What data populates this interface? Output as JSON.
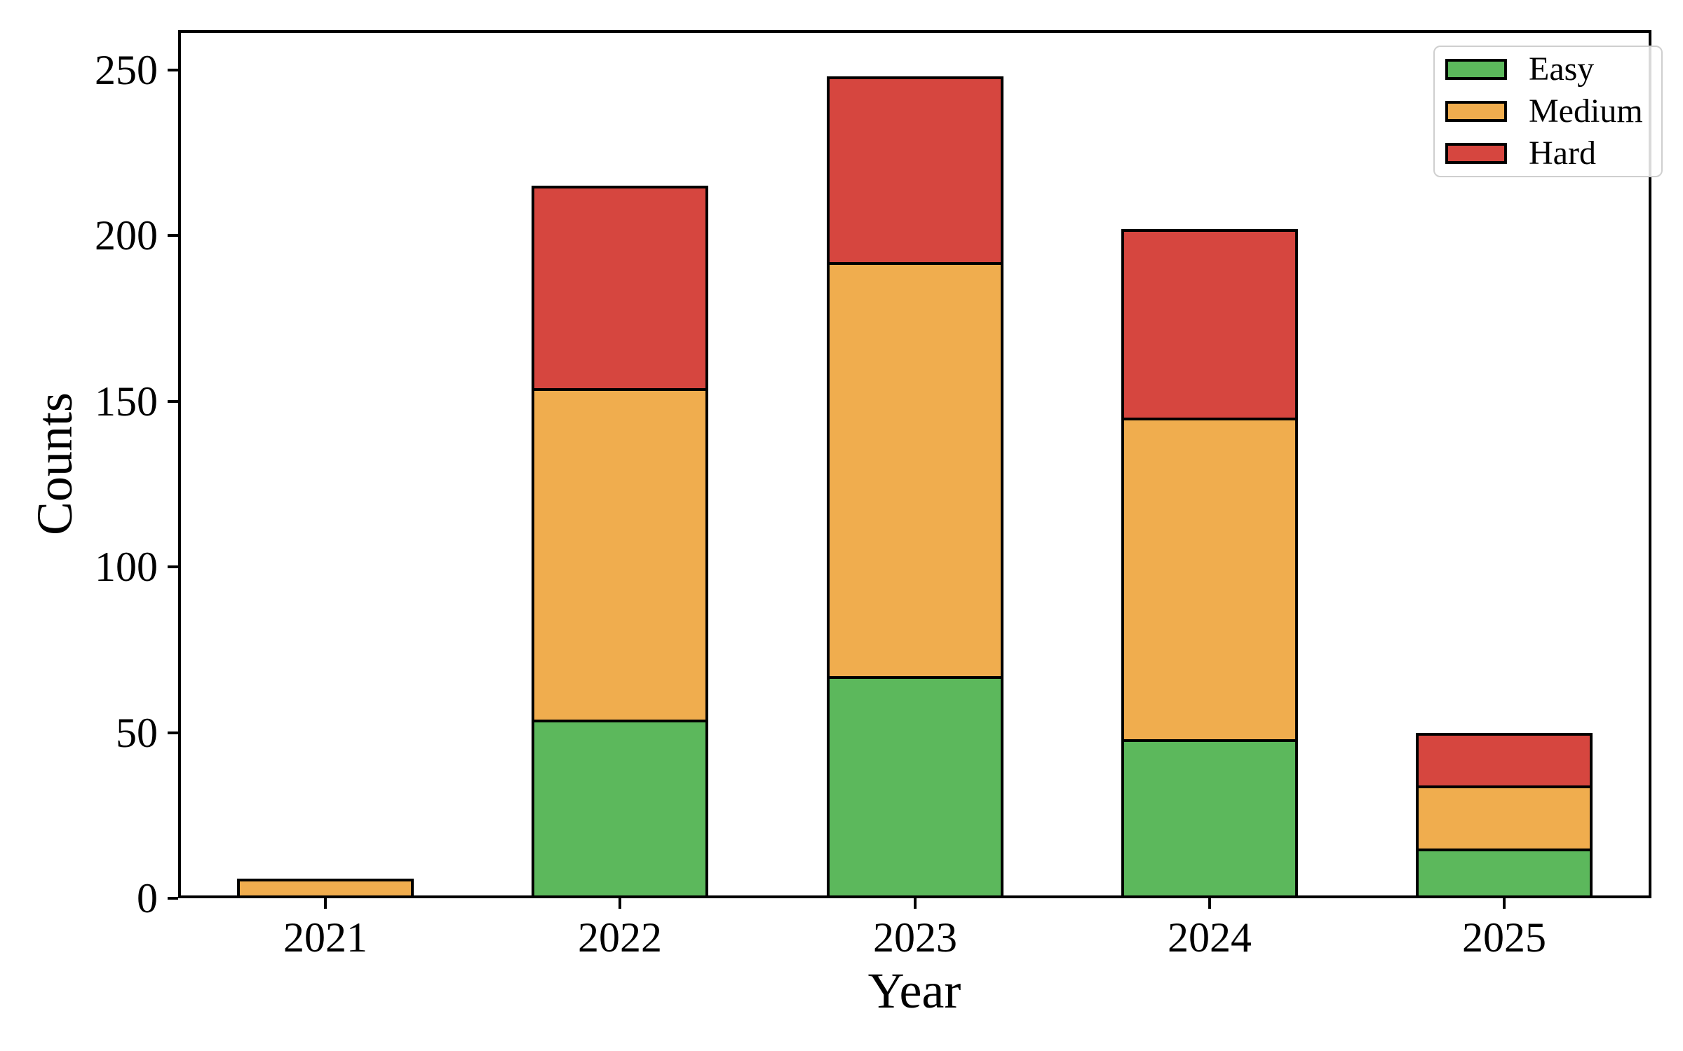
{
  "figure": {
    "background_color": "#ffffff",
    "text_color": "#000000"
  },
  "chart_data": {
    "type": "bar",
    "stacked": true,
    "title": "",
    "xlabel": "Year",
    "ylabel": "Counts",
    "categories": [
      "2021",
      "2022",
      "2023",
      "2024",
      "2025"
    ],
    "series": [
      {
        "name": "Easy",
        "color": "#5cb85c",
        "values": [
          0,
          54,
          67,
          48,
          15
        ]
      },
      {
        "name": "Medium",
        "color": "#f0ad4e",
        "values": [
          6,
          100,
          125,
          97,
          19
        ]
      },
      {
        "name": "Hard",
        "color": "#d6463f",
        "values": [
          0,
          61,
          56,
          57,
          16
        ]
      }
    ],
    "stack_totals": [
      6,
      215,
      248,
      202,
      50
    ],
    "ylim": [
      0,
      262
    ],
    "yticks": [
      0,
      50,
      100,
      150,
      200,
      250
    ],
    "grid": false,
    "legend": {
      "position": "upper-right",
      "entries": [
        "Easy",
        "Medium",
        "Hard"
      ]
    },
    "bar_edge_color": "#000000",
    "axis_color": "#000000"
  }
}
